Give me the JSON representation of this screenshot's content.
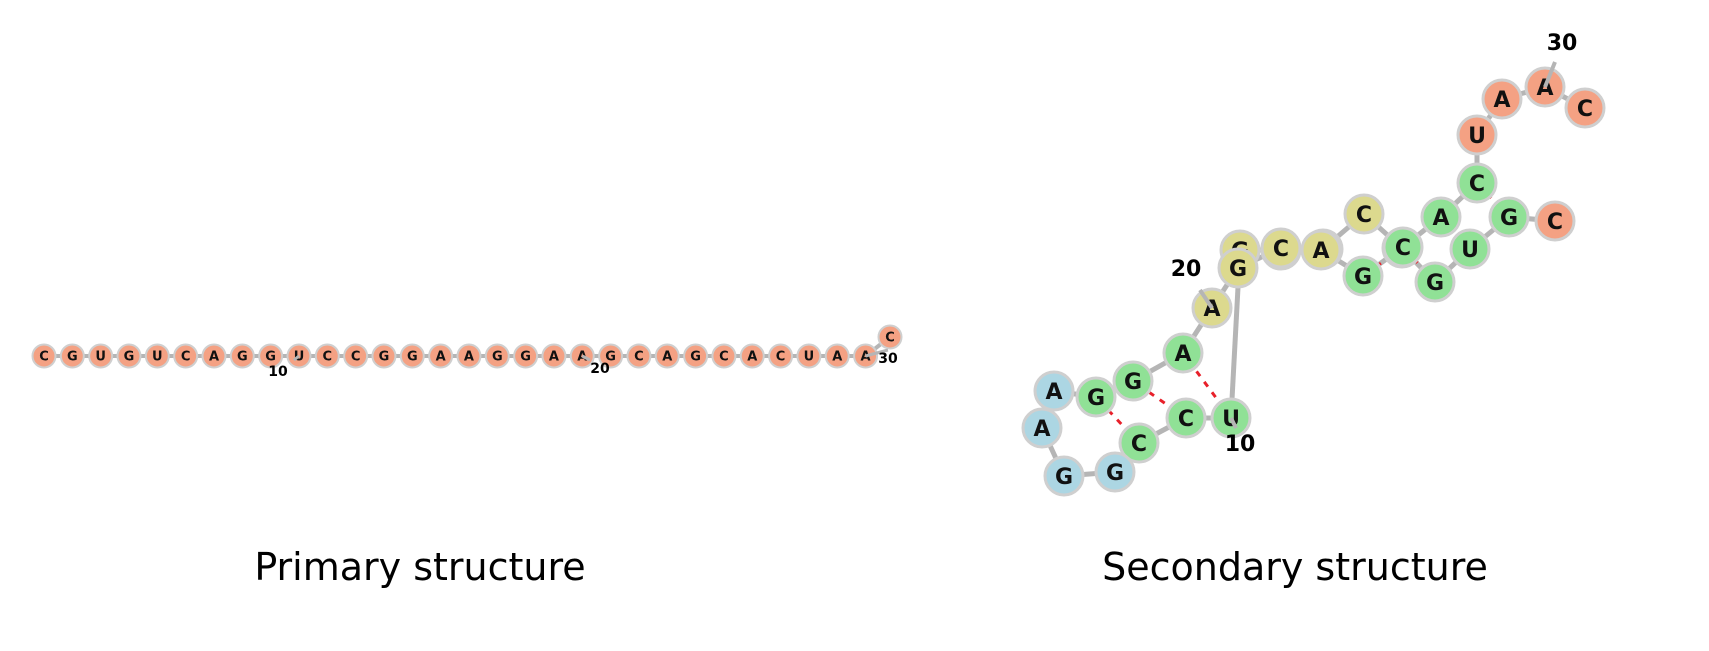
{
  "colors": {
    "backbone": "#b5b5b5",
    "pair_bond": "#e8202a",
    "node_stroke": "#cfcfcf",
    "unpaired_5p3p": "#f4a183",
    "stem": "#90e196",
    "internal_loop": "#dcd98e",
    "hairpin_loop": "#acd6e3"
  },
  "primary": {
    "caption": "Primary structure",
    "sequence": [
      "C",
      "G",
      "U",
      "G",
      "U",
      "C",
      "A",
      "G",
      "G",
      "U",
      "C",
      "C",
      "G",
      "G",
      "A",
      "A",
      "G",
      "G",
      "A",
      "A",
      "G",
      "C",
      "A",
      "G",
      "C",
      "A",
      "C",
      "U",
      "A",
      "A",
      "C"
    ],
    "labels": [
      {
        "index": 10,
        "text": "10"
      },
      {
        "index": 20,
        "text": "20"
      },
      {
        "index": 30,
        "text": "30"
      }
    ]
  },
  "secondary": {
    "caption": "Secondary structure",
    "nucleotides": [
      {
        "letter": "C",
        "role": "unpaired_5p3p"
      },
      {
        "letter": "G",
        "role": "stem"
      },
      {
        "letter": "U",
        "role": "stem"
      },
      {
        "letter": "G",
        "role": "stem"
      },
      {
        "letter": "U",
        "role": "stem"
      },
      {
        "letter": "C",
        "role": "internal_loop"
      },
      {
        "letter": "A",
        "role": "internal_loop"
      },
      {
        "letter": "G",
        "role": "internal_loop"
      },
      {
        "letter": "G",
        "role": "internal_loop"
      },
      {
        "letter": "U",
        "role": "stem"
      },
      {
        "letter": "C",
        "role": "stem"
      },
      {
        "letter": "C",
        "role": "stem"
      },
      {
        "letter": "G",
        "role": "hairpin_loop"
      },
      {
        "letter": "G",
        "role": "hairpin_loop"
      },
      {
        "letter": "A",
        "role": "hairpin_loop"
      },
      {
        "letter": "A",
        "role": "hairpin_loop"
      },
      {
        "letter": "G",
        "role": "stem"
      },
      {
        "letter": "G",
        "role": "stem"
      },
      {
        "letter": "A",
        "role": "stem"
      },
      {
        "letter": "A",
        "role": "internal_loop"
      },
      {
        "letter": "G",
        "role": "internal_loop"
      },
      {
        "letter": "C",
        "role": "internal_loop"
      },
      {
        "letter": "A",
        "role": "internal_loop"
      },
      {
        "letter": "G",
        "role": "stem"
      },
      {
        "letter": "C",
        "role": "stem"
      },
      {
        "letter": "A",
        "role": "stem"
      },
      {
        "letter": "C",
        "role": "stem"
      },
      {
        "letter": "U",
        "role": "unpaired_5p3p"
      },
      {
        "letter": "A",
        "role": "unpaired_5p3p"
      },
      {
        "letter": "A",
        "role": "unpaired_5p3p"
      },
      {
        "letter": "C",
        "role": "unpaired_5p3p"
      }
    ],
    "pairs": [
      [
        2,
        27
      ],
      [
        3,
        26
      ],
      [
        4,
        25
      ],
      [
        5,
        24
      ],
      [
        10,
        19
      ],
      [
        11,
        18
      ],
      [
        12,
        17
      ]
    ],
    "labels": [
      {
        "index": 10,
        "text": "10"
      },
      {
        "index": 20,
        "text": "20"
      },
      {
        "index": 30,
        "text": "30"
      }
    ]
  }
}
